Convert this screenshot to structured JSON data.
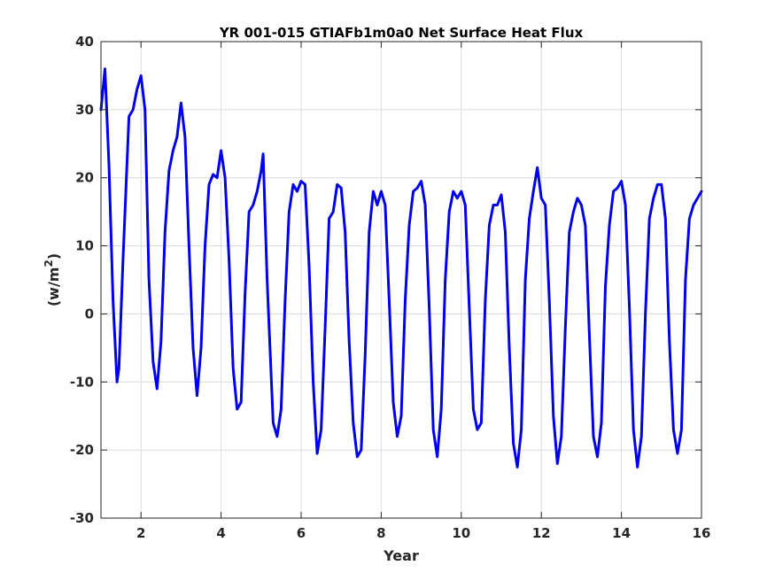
{
  "chart_data": {
    "type": "line",
    "title": "YR 001-015 GTIAFb1m0a0 Net Surface Heat Flux",
    "xlabel": "Year",
    "ylabel": "(w/m",
    "ylabel_sup": "2",
    "ylabel_end": ")",
    "xlim": [
      1,
      16
    ],
    "ylim": [
      -30,
      40
    ],
    "xticks": [
      2,
      4,
      6,
      8,
      10,
      12,
      14,
      16
    ],
    "xtick_labels": [
      "2",
      "4",
      "6",
      "8",
      "10",
      "12",
      "14",
      "16"
    ],
    "yticks": [
      -30,
      -20,
      -10,
      0,
      10,
      20,
      30,
      40
    ],
    "ytick_labels": [
      "-30",
      "-20",
      "-10",
      "0",
      "10",
      "20",
      "30",
      "40"
    ],
    "grid": true,
    "series": [
      {
        "color": "#0000ee",
        "x": [
          1.0,
          1.1,
          1.2,
          1.3,
          1.4,
          1.45,
          1.55,
          1.7,
          1.8,
          1.9,
          2.0,
          2.1,
          2.2,
          2.3,
          2.4,
          2.5,
          2.6,
          2.7,
          2.8,
          2.9,
          3.0,
          3.1,
          3.2,
          3.3,
          3.4,
          3.5,
          3.6,
          3.7,
          3.8,
          3.9,
          4.0,
          4.1,
          4.2,
          4.3,
          4.4,
          4.5,
          4.6,
          4.7,
          4.8,
          4.9,
          5.0,
          5.05,
          5.15,
          5.3,
          5.4,
          5.5,
          5.6,
          5.7,
          5.8,
          5.9,
          6.0,
          6.1,
          6.2,
          6.3,
          6.4,
          6.5,
          6.6,
          6.7,
          6.8,
          6.9,
          7.0,
          7.1,
          7.2,
          7.3,
          7.4,
          7.5,
          7.6,
          7.7,
          7.8,
          7.9,
          8.0,
          8.1,
          8.2,
          8.3,
          8.4,
          8.5,
          8.6,
          8.7,
          8.8,
          8.9,
          9.0,
          9.1,
          9.2,
          9.3,
          9.4,
          9.5,
          9.6,
          9.7,
          9.8,
          9.9,
          10.0,
          10.1,
          10.2,
          10.3,
          10.4,
          10.5,
          10.6,
          10.7,
          10.8,
          10.9,
          11.0,
          11.1,
          11.2,
          11.3,
          11.4,
          11.5,
          11.6,
          11.7,
          11.8,
          11.9,
          12.0,
          12.1,
          12.2,
          12.3,
          12.4,
          12.5,
          12.6,
          12.7,
          12.8,
          12.9,
          13.0,
          13.1,
          13.2,
          13.3,
          13.4,
          13.5,
          13.6,
          13.7,
          13.8,
          13.9,
          14.0,
          14.1,
          14.2,
          14.3,
          14.4,
          14.5,
          14.6,
          14.7,
          14.8,
          14.9,
          15.0,
          15.1,
          15.2,
          15.3,
          15.4,
          15.5,
          15.6,
          15.7,
          15.8,
          15.9,
          16.0
        ],
        "y": [
          30,
          36,
          22,
          2,
          -10,
          -8,
          8,
          29,
          30,
          33,
          35,
          30,
          5,
          -7,
          -11,
          -4,
          12,
          21,
          24,
          26,
          31,
          26,
          10,
          -5,
          -12,
          -5,
          10,
          19,
          20.5,
          20,
          24,
          20,
          8,
          -8,
          -14,
          -13,
          3,
          15,
          16,
          18,
          21,
          23.5,
          5,
          -16,
          -18,
          -14,
          2,
          15,
          19,
          18,
          19.5,
          19,
          7,
          -10,
          -20.5,
          -17,
          -2,
          14,
          15,
          19,
          18.5,
          12,
          -4,
          -16,
          -21,
          -20,
          -6,
          12,
          18,
          16,
          18,
          16,
          2,
          -13,
          -18,
          -15,
          2,
          13,
          18,
          18.5,
          19.5,
          16,
          1,
          -17,
          -21,
          -14,
          5,
          15,
          18,
          17,
          18,
          16,
          1,
          -14,
          -17,
          -16,
          2,
          13,
          16,
          16,
          17.5,
          12,
          -5,
          -19,
          -22.5,
          -17,
          5,
          14,
          18,
          21.5,
          17,
          16,
          2,
          -15,
          -22,
          -18,
          -2,
          12,
          15,
          17,
          16,
          13,
          -3,
          -18,
          -21,
          -16,
          4,
          13,
          18,
          18.5,
          19.5,
          16,
          1,
          -17,
          -22.5,
          -18,
          0,
          14,
          17,
          19,
          19,
          14,
          -4,
          -17,
          -20.5,
          -17,
          5,
          14,
          16,
          17,
          18
        ]
      }
    ]
  }
}
